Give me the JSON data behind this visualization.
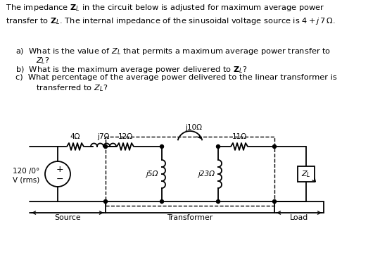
{
  "bg_color": "#ffffff",
  "line_color": "#000000",
  "fig_w": 5.4,
  "fig_h": 3.96,
  "dpi": 100,
  "text_intro": "The impedance $\\mathbf{Z}_L$ in the circuit below is adjusted for maximum average power\ntransfer to $\\mathbf{Z}_L$. The internal impedance of the sinusoidal voltage source is $4 + j\\,7\\,\\Omega$.",
  "qa_a1": "a)  What is the value of $Z_L$ that permits a maximum average power transfer to",
  "qa_a2": "     $Z_L$?",
  "qa_b": "b)  What is the maximum average power delivered to $\\mathbf{Z}_L$?",
  "qa_c1": "c)  What percentage of the average power delivered to the linear transformer is",
  "qa_c2": "     transferred to $Z_L$?",
  "label_4ohm": "4Ω",
  "label_j7ohm": "j7Ω",
  "label_12ohm": "12Ω",
  "label_j10ohm": "j10Ω",
  "label_11ohm": "11Ω",
  "label_j5ohm": "j5Ω",
  "label_j23ohm": "j23Ω",
  "label_zl": "$Z_L$",
  "label_source_v": "120/0°\nV (rms)",
  "label_source": "Source",
  "label_transformer": "Transformer",
  "label_load": "Load"
}
